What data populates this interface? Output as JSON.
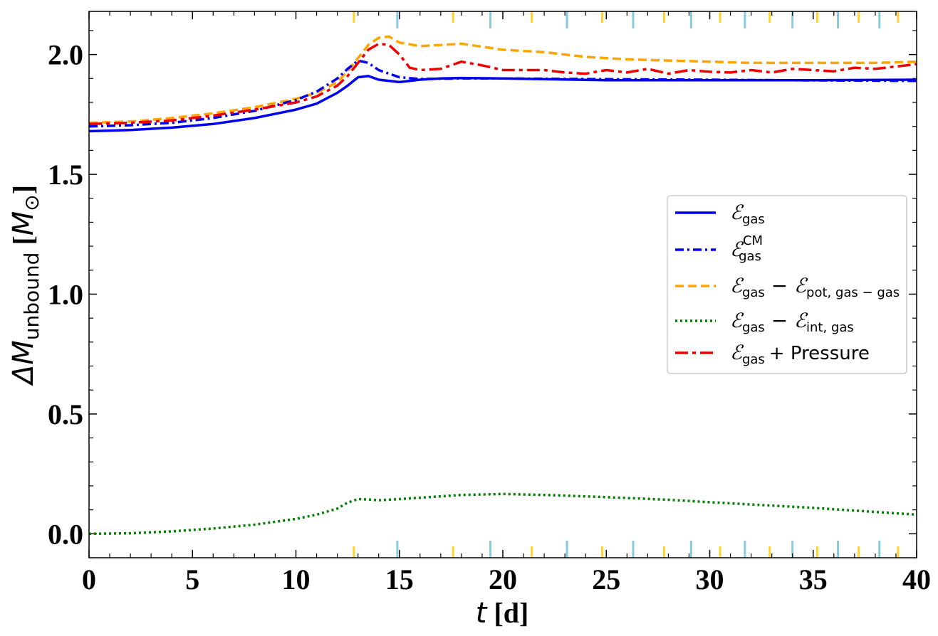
{
  "chart_data": {
    "type": "line",
    "xlabel": "t [d]",
    "ylabel": "ΔM_unbound [M_⊙]",
    "xlim": [
      0,
      40
    ],
    "ylim": [
      -0.1,
      2.18
    ],
    "xticks": [
      0,
      5,
      10,
      15,
      20,
      25,
      30,
      35,
      40
    ],
    "yticks": [
      0.0,
      0.5,
      1.0,
      1.5,
      2.0
    ],
    "xtick_labels": [
      "0",
      "5",
      "10",
      "15",
      "20",
      "25",
      "30",
      "35",
      "40"
    ],
    "ytick_labels": [
      "0.0",
      "0.5",
      "1.0",
      "1.5",
      "2.0"
    ],
    "grid": false,
    "legend_position": "right",
    "orbit_markers": {
      "gold": [
        12.8,
        17.6,
        21.4,
        24.8,
        27.8,
        30.5,
        32.9,
        35.2,
        37.2,
        39.1
      ],
      "lightblue": [
        14.9,
        19.4,
        23.1,
        26.3,
        29.1,
        31.7,
        34.0,
        36.2,
        38.2
      ]
    },
    "series": [
      {
        "name": "E_gas",
        "label_main": "ℰ",
        "label_sub": "gas",
        "color": "#0000ee",
        "dash": "solid",
        "x": [
          0,
          2,
          4,
          6,
          8,
          10,
          11,
          12,
          12.5,
          13,
          13.5,
          14,
          15,
          16,
          17,
          18,
          20,
          25,
          30,
          35,
          40
        ],
        "y": [
          1.68,
          1.685,
          1.695,
          1.71,
          1.735,
          1.77,
          1.795,
          1.84,
          1.87,
          1.905,
          1.91,
          1.895,
          1.885,
          1.895,
          1.9,
          1.902,
          1.9,
          1.893,
          1.893,
          1.893,
          1.895
        ]
      },
      {
        "name": "E_gas^CM",
        "label_main": "ℰ",
        "label_sub": "gas",
        "label_sup": "CM",
        "color": "#0000ee",
        "dash": "dashdot",
        "x": [
          0,
          2,
          4,
          6,
          8,
          10,
          11,
          12,
          12.5,
          13,
          13.5,
          14,
          15,
          16,
          18,
          20,
          25,
          30,
          35,
          40
        ],
        "y": [
          1.7,
          1.705,
          1.715,
          1.735,
          1.765,
          1.81,
          1.845,
          1.9,
          1.94,
          1.975,
          1.965,
          1.935,
          1.905,
          1.898,
          1.9,
          1.9,
          1.897,
          1.895,
          1.892,
          1.89
        ]
      },
      {
        "name": "E_gas - E_pot,gas-gas",
        "label_main": "ℰ",
        "label_sub": "gas",
        "label_rest_main": " − ℰ",
        "label_rest_sub": "pot, gas − gas",
        "color": "#ffa500",
        "dash": "dashed",
        "x": [
          0,
          2,
          4,
          6,
          8,
          10,
          11,
          12,
          12.5,
          13,
          13.5,
          14,
          14.5,
          15,
          16,
          17,
          18,
          20,
          22,
          24,
          26,
          28,
          30,
          32,
          35,
          38,
          40
        ],
        "y": [
          1.715,
          1.72,
          1.735,
          1.755,
          1.78,
          1.815,
          1.84,
          1.885,
          1.93,
          1.985,
          2.04,
          2.07,
          2.075,
          2.05,
          2.035,
          2.04,
          2.045,
          2.02,
          2.01,
          1.99,
          1.98,
          1.975,
          1.97,
          1.965,
          1.965,
          1.965,
          1.97
        ]
      },
      {
        "name": "E_gas - E_int,gas",
        "label_main": "ℰ",
        "label_sub": "gas",
        "label_rest_main": " − ℰ",
        "label_rest_sub": "int, gas",
        "color": "#008000",
        "dash": "dotted",
        "x": [
          0,
          2,
          4,
          6,
          8,
          10,
          11,
          12,
          12.5,
          13,
          13.5,
          14,
          15,
          18,
          20,
          22,
          25,
          28,
          30,
          35,
          40
        ],
        "y": [
          0.0,
          0.002,
          0.01,
          0.022,
          0.038,
          0.062,
          0.08,
          0.105,
          0.13,
          0.145,
          0.143,
          0.14,
          0.145,
          0.162,
          0.166,
          0.162,
          0.153,
          0.142,
          0.132,
          0.108,
          0.08
        ]
      },
      {
        "name": "E_gas + Pressure",
        "label_main": "ℰ",
        "label_sub": "gas",
        "label_rest_text": "+  Pressure",
        "color": "#ee0000",
        "dash": "dashdot-long",
        "x": [
          0,
          2,
          4,
          6,
          8,
          10,
          11,
          12,
          12.5,
          13,
          13.5,
          14,
          14.5,
          15,
          15.5,
          16,
          17,
          18,
          19,
          20,
          21,
          22,
          23,
          24,
          25,
          26,
          27,
          28,
          29,
          30,
          31,
          32,
          33,
          34,
          35,
          36,
          37,
          38,
          39,
          40
        ],
        "y": [
          1.71,
          1.715,
          1.725,
          1.745,
          1.77,
          1.8,
          1.825,
          1.87,
          1.91,
          1.965,
          2.02,
          2.045,
          2.04,
          2.0,
          1.945,
          1.935,
          1.94,
          1.97,
          1.955,
          1.935,
          1.935,
          1.935,
          1.925,
          1.92,
          1.935,
          1.925,
          1.94,
          1.92,
          1.935,
          1.928,
          1.925,
          1.935,
          1.925,
          1.94,
          1.935,
          1.93,
          1.945,
          1.94,
          1.95,
          1.96
        ]
      }
    ]
  }
}
